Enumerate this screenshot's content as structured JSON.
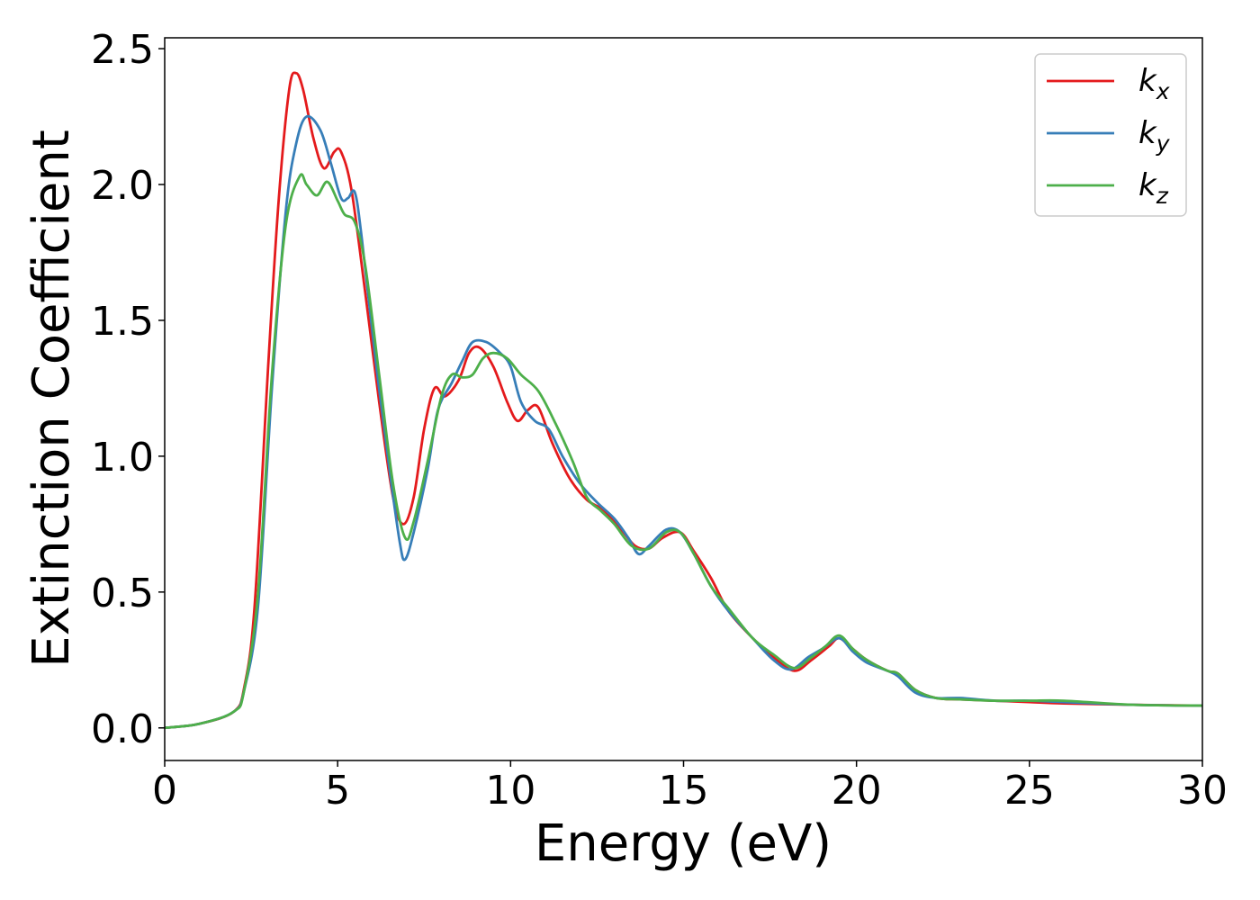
{
  "chart_data": {
    "type": "line",
    "title": "",
    "xlabel": "Energy (eV)",
    "ylabel": "Extinction Coefficient",
    "xlim": [
      0,
      30
    ],
    "ylim": [
      -0.12,
      2.54
    ],
    "xticks": [
      0,
      5,
      10,
      15,
      20,
      25,
      30
    ],
    "xtick_labels": [
      "0",
      "5",
      "10",
      "15",
      "20",
      "25",
      "30"
    ],
    "yticks": [
      0.0,
      0.5,
      1.0,
      1.5,
      2.0,
      2.5
    ],
    "ytick_labels": [
      "0.0",
      "0.5",
      "1.0",
      "1.5",
      "2.0",
      "2.5"
    ],
    "grid": false,
    "legend_position": "top-right",
    "series": [
      {
        "name": "k",
        "subscript": "x",
        "color": "#e41a1c",
        "points": [
          [
            0,
            0
          ],
          [
            1,
            0.015
          ],
          [
            2,
            0.06
          ],
          [
            2.3,
            0.15
          ],
          [
            2.6,
            0.45
          ],
          [
            3.0,
            1.35
          ],
          [
            3.3,
            1.95
          ],
          [
            3.6,
            2.35
          ],
          [
            3.8,
            2.41
          ],
          [
            4.0,
            2.35
          ],
          [
            4.3,
            2.17
          ],
          [
            4.6,
            2.06
          ],
          [
            4.9,
            2.12
          ],
          [
            5.1,
            2.12
          ],
          [
            5.4,
            1.98
          ],
          [
            5.8,
            1.6
          ],
          [
            6.2,
            1.2
          ],
          [
            6.6,
            0.85
          ],
          [
            6.9,
            0.75
          ],
          [
            7.2,
            0.85
          ],
          [
            7.5,
            1.1
          ],
          [
            7.8,
            1.25
          ],
          [
            8.1,
            1.22
          ],
          [
            8.5,
            1.28
          ],
          [
            8.8,
            1.38
          ],
          [
            9.1,
            1.4
          ],
          [
            9.5,
            1.33
          ],
          [
            9.9,
            1.2
          ],
          [
            10.2,
            1.13
          ],
          [
            10.5,
            1.17
          ],
          [
            10.8,
            1.18
          ],
          [
            11.2,
            1.05
          ],
          [
            11.7,
            0.92
          ],
          [
            12.2,
            0.84
          ],
          [
            12.7,
            0.8
          ],
          [
            13.2,
            0.73
          ],
          [
            13.6,
            0.67
          ],
          [
            14.0,
            0.66
          ],
          [
            14.4,
            0.7
          ],
          [
            14.9,
            0.72
          ],
          [
            15.3,
            0.65
          ],
          [
            15.8,
            0.55
          ],
          [
            16.3,
            0.43
          ],
          [
            17.0,
            0.33
          ],
          [
            17.6,
            0.26
          ],
          [
            18.2,
            0.21
          ],
          [
            18.7,
            0.25
          ],
          [
            19.2,
            0.3
          ],
          [
            19.5,
            0.33
          ],
          [
            19.9,
            0.29
          ],
          [
            20.3,
            0.25
          ],
          [
            20.9,
            0.21
          ],
          [
            21.2,
            0.2
          ],
          [
            21.7,
            0.14
          ],
          [
            22.3,
            0.11
          ],
          [
            23.0,
            0.105
          ],
          [
            24.0,
            0.1
          ],
          [
            25.0,
            0.095
          ],
          [
            26.0,
            0.09
          ],
          [
            28.0,
            0.085
          ],
          [
            30.0,
            0.082
          ]
        ]
      },
      {
        "name": "k",
        "subscript": "y",
        "color": "#377eb8",
        "points": [
          [
            0,
            0
          ],
          [
            1,
            0.015
          ],
          [
            2,
            0.06
          ],
          [
            2.3,
            0.14
          ],
          [
            2.7,
            0.45
          ],
          [
            3.1,
            1.25
          ],
          [
            3.5,
            1.9
          ],
          [
            3.8,
            2.15
          ],
          [
            4.1,
            2.25
          ],
          [
            4.5,
            2.2
          ],
          [
            4.8,
            2.08
          ],
          [
            5.1,
            1.95
          ],
          [
            5.3,
            1.95
          ],
          [
            5.5,
            1.97
          ],
          [
            5.7,
            1.8
          ],
          [
            6.1,
            1.35
          ],
          [
            6.5,
            0.95
          ],
          [
            6.8,
            0.68
          ],
          [
            6.95,
            0.62
          ],
          [
            7.2,
            0.72
          ],
          [
            7.6,
            0.95
          ],
          [
            7.9,
            1.17
          ],
          [
            8.3,
            1.27
          ],
          [
            8.6,
            1.35
          ],
          [
            8.9,
            1.42
          ],
          [
            9.3,
            1.42
          ],
          [
            9.7,
            1.38
          ],
          [
            10.0,
            1.33
          ],
          [
            10.3,
            1.2
          ],
          [
            10.7,
            1.13
          ],
          [
            11.1,
            1.1
          ],
          [
            11.5,
            1.0
          ],
          [
            12.0,
            0.9
          ],
          [
            12.5,
            0.83
          ],
          [
            13.0,
            0.77
          ],
          [
            13.4,
            0.7
          ],
          [
            13.7,
            0.64
          ],
          [
            14.0,
            0.67
          ],
          [
            14.5,
            0.73
          ],
          [
            14.9,
            0.72
          ],
          [
            15.3,
            0.64
          ],
          [
            15.8,
            0.52
          ],
          [
            16.3,
            0.43
          ],
          [
            17.0,
            0.33
          ],
          [
            17.6,
            0.25
          ],
          [
            18.1,
            0.215
          ],
          [
            18.6,
            0.26
          ],
          [
            19.0,
            0.29
          ],
          [
            19.5,
            0.33
          ],
          [
            19.9,
            0.28
          ],
          [
            20.3,
            0.24
          ],
          [
            20.9,
            0.21
          ],
          [
            21.2,
            0.19
          ],
          [
            21.7,
            0.13
          ],
          [
            22.3,
            0.11
          ],
          [
            23.0,
            0.11
          ],
          [
            24.0,
            0.1
          ],
          [
            25.0,
            0.1
          ],
          [
            26.0,
            0.095
          ],
          [
            28.0,
            0.085
          ],
          [
            30.0,
            0.082
          ]
        ]
      },
      {
        "name": "k",
        "subscript": "z",
        "color": "#4daf4a",
        "points": [
          [
            0,
            0
          ],
          [
            1,
            0.015
          ],
          [
            2,
            0.06
          ],
          [
            2.3,
            0.14
          ],
          [
            2.7,
            0.5
          ],
          [
            3.1,
            1.3
          ],
          [
            3.5,
            1.85
          ],
          [
            3.9,
            2.03
          ],
          [
            4.1,
            2.0
          ],
          [
            4.4,
            1.96
          ],
          [
            4.7,
            2.01
          ],
          [
            5.0,
            1.94
          ],
          [
            5.2,
            1.89
          ],
          [
            5.5,
            1.86
          ],
          [
            5.8,
            1.7
          ],
          [
            6.2,
            1.3
          ],
          [
            6.6,
            0.9
          ],
          [
            6.95,
            0.7
          ],
          [
            7.2,
            0.76
          ],
          [
            7.6,
            0.98
          ],
          [
            8.0,
            1.22
          ],
          [
            8.3,
            1.3
          ],
          [
            8.6,
            1.29
          ],
          [
            8.9,
            1.3
          ],
          [
            9.2,
            1.36
          ],
          [
            9.5,
            1.38
          ],
          [
            9.9,
            1.36
          ],
          [
            10.3,
            1.3
          ],
          [
            10.8,
            1.24
          ],
          [
            11.3,
            1.12
          ],
          [
            11.8,
            0.98
          ],
          [
            12.2,
            0.85
          ],
          [
            12.6,
            0.8
          ],
          [
            13.0,
            0.75
          ],
          [
            13.5,
            0.67
          ],
          [
            14.0,
            0.66
          ],
          [
            14.5,
            0.72
          ],
          [
            14.9,
            0.72
          ],
          [
            15.3,
            0.64
          ],
          [
            15.8,
            0.52
          ],
          [
            16.3,
            0.44
          ],
          [
            17.0,
            0.33
          ],
          [
            17.6,
            0.27
          ],
          [
            18.2,
            0.22
          ],
          [
            18.7,
            0.26
          ],
          [
            19.1,
            0.3
          ],
          [
            19.5,
            0.34
          ],
          [
            19.9,
            0.29
          ],
          [
            20.3,
            0.25
          ],
          [
            20.9,
            0.21
          ],
          [
            21.2,
            0.2
          ],
          [
            21.7,
            0.14
          ],
          [
            22.3,
            0.11
          ],
          [
            23.0,
            0.105
          ],
          [
            24.0,
            0.1
          ],
          [
            25.0,
            0.1
          ],
          [
            26.0,
            0.1
          ],
          [
            28.0,
            0.085
          ],
          [
            30.0,
            0.082
          ]
        ]
      }
    ]
  }
}
